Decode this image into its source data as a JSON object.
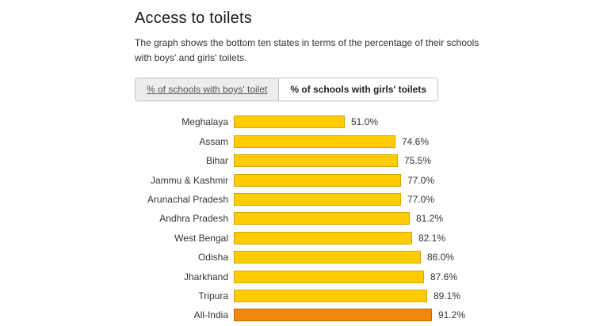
{
  "page": {
    "title": "Access to toilets",
    "subtitle": "The graph shows the bottom ten states in terms of the percentage of their schools with boys' and girls' toilets."
  },
  "tabs": [
    {
      "label": "% of schools with boys' toilet",
      "active": false
    },
    {
      "label": "% of schools with girls' toilets",
      "active": true
    }
  ],
  "chart_data": {
    "type": "bar",
    "orientation": "horizontal",
    "title": "% of schools with girls' toilets",
    "categories": [
      "Meghalaya",
      "Assam",
      "Bihar",
      "Jammu & Kashmir",
      "Arunachal Pradesh",
      "Andhra Pradesh",
      "West Bengal",
      "Odisha",
      "Jharkhand",
      "Tripura",
      "All-India"
    ],
    "values": [
      51.0,
      74.6,
      75.5,
      77.0,
      77.0,
      81.2,
      82.1,
      86.0,
      87.6,
      89.1,
      91.2
    ],
    "value_labels": [
      "51.0%",
      "74.6%",
      "75.5%",
      "77.0%",
      "77.0%",
      "81.2%",
      "82.1%",
      "86.0%",
      "87.6%",
      "89.1%",
      "91.2%"
    ],
    "xlim": [
      0,
      100
    ],
    "grid": false,
    "legend": "none",
    "bar_color": "#FFCC00",
    "bar_border_color": "#D8A400",
    "highlight_category": "All-India",
    "highlight_color": "#F2870D",
    "highlight_border_color": "#C06A00"
  }
}
